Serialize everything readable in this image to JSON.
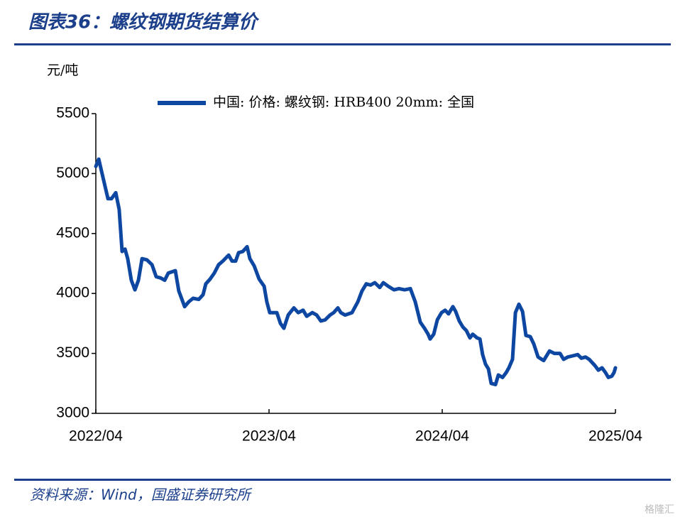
{
  "header": {
    "title": "图表36：螺纹钢期货结算价"
  },
  "chart_data": {
    "type": "line",
    "y_label": "元/吨",
    "x": [
      0,
      0.2,
      0.49,
      0.84,
      1.08,
      1.38,
      1.62,
      1.82,
      2.02,
      2.21,
      2.46,
      2.71,
      2.95,
      3.2,
      3.54,
      3.89,
      4.18,
      4.48,
      4.77,
      5.02,
      5.51,
      5.75,
      6.15,
      6.44,
      6.74,
      7.13,
      7.43,
      7.62,
      7.92,
      8.21,
      8.51,
      8.8,
      9.2,
      9.44,
      9.69,
      9.89,
      10.18,
      10.48,
      10.67,
      10.97,
      11.31,
      11.66,
      11.85,
      12.05,
      12.54,
      12.79,
      13.03,
      13.33,
      13.72,
      14.02,
      14.36,
      14.61,
      15.0,
      15.3,
      15.59,
      15.89,
      16.23,
      16.48,
      16.77,
      16.97,
      17.26,
      17.75,
      18.15,
      18.44,
      18.74,
      19.03,
      19.33,
      19.67,
      19.92,
      20.26,
      20.66,
      21.0,
      21.39,
      21.79,
      22.13,
      22.48,
      22.77,
      23.02,
      23.16,
      23.41,
      23.66,
      23.95,
      24.2,
      24.44,
      24.74,
      24.93,
      25.18,
      25.43,
      25.67,
      25.92,
      26.11,
      26.41,
      26.61,
      26.8,
      27.0,
      27.2,
      27.39,
      27.69,
      27.89,
      28.18,
      28.43,
      28.62,
      28.87,
      29.07,
      29.31,
      29.56,
      29.8,
      30.1,
      30.34,
      30.64,
      31.03,
      31.43,
      31.77,
      32.16,
      32.41,
      32.7,
      33.05,
      33.39,
      33.64,
      33.93,
      34.18,
      34.57,
      34.82,
      35.07,
      35.31,
      35.51,
      35.75,
      35.9,
      36
    ],
    "series": [
      {
        "name": "中国: 价格: 螺纹钢: HRB400 20mm: 全国",
        "color": "#0d47a1",
        "values": [
          5060,
          5120,
          4970,
          4790,
          4790,
          4840,
          4700,
          4350,
          4370,
          4290,
          4110,
          4030,
          4110,
          4290,
          4280,
          4240,
          4140,
          4130,
          4110,
          4170,
          4190,
          4020,
          3890,
          3930,
          3960,
          3950,
          3990,
          4080,
          4120,
          4170,
          4240,
          4270,
          4320,
          4270,
          4270,
          4340,
          4350,
          4390,
          4290,
          4230,
          4120,
          4060,
          3930,
          3840,
          3840,
          3750,
          3710,
          3820,
          3880,
          3840,
          3860,
          3810,
          3840,
          3820,
          3770,
          3780,
          3820,
          3840,
          3880,
          3840,
          3820,
          3840,
          3930,
          4020,
          4080,
          4070,
          4090,
          4050,
          4090,
          4060,
          4030,
          4040,
          4030,
          4040,
          3930,
          3760,
          3710,
          3660,
          3620,
          3660,
          3780,
          3840,
          3860,
          3830,
          3890,
          3850,
          3770,
          3720,
          3690,
          3630,
          3660,
          3630,
          3620,
          3490,
          3410,
          3370,
          3250,
          3240,
          3320,
          3300,
          3340,
          3380,
          3450,
          3840,
          3910,
          3850,
          3650,
          3640,
          3580,
          3470,
          3440,
          3520,
          3500,
          3500,
          3450,
          3470,
          3480,
          3490,
          3460,
          3470,
          3450,
          3400,
          3360,
          3380,
          3340,
          3300,
          3310,
          3340,
          3380
        ]
      }
    ],
    "xlim": [
      0,
      36
    ],
    "xticks": [
      {
        "value": 0,
        "label": "2022/04"
      },
      {
        "value": 12,
        "label": "2023/04"
      },
      {
        "value": 24,
        "label": "2024/04"
      },
      {
        "value": 36,
        "label": "2025/04"
      }
    ],
    "ylim": [
      3000,
      5500
    ],
    "yticks": [
      3000,
      3500,
      4000,
      4500,
      5000,
      5500
    ],
    "grid": false,
    "legend": "top"
  },
  "footer": {
    "source": "资料来源：Wind，国盛证券研究所",
    "watermark": "格隆汇"
  }
}
